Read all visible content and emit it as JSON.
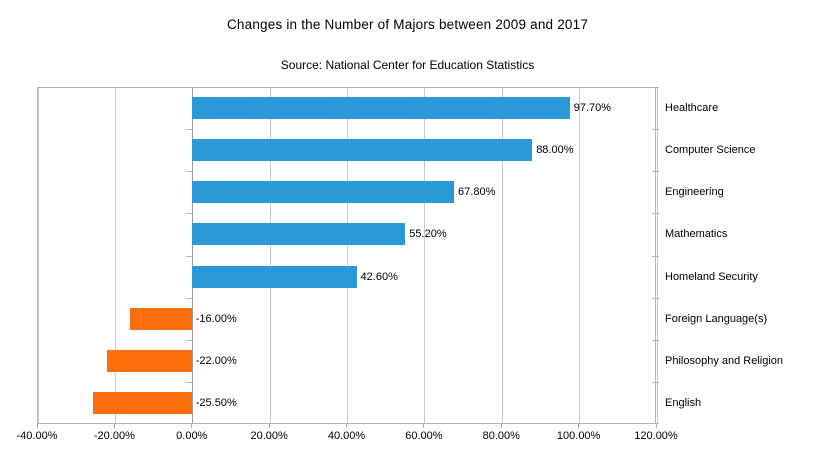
{
  "header": {
    "title": "Changes in the Number of Majors between 2009 and 2017",
    "subtitle": "Source: National Center for Education Statistics"
  },
  "chart_data": {
    "type": "bar",
    "orientation": "horizontal",
    "title": "Changes in the Number of Majors between 2009 and 2017",
    "subtitle": "Source: National Center for Education Statistics",
    "categories": [
      "Healthcare",
      "Computer Science",
      "Engineering",
      "Mathematics",
      "Homeland Security",
      "Foreign Language(s)",
      "Philosophy and Religion",
      "English"
    ],
    "values": [
      97.7,
      88.0,
      67.8,
      55.2,
      42.6,
      -16.0,
      -22.0,
      -25.5
    ],
    "value_labels": [
      "97.70%",
      "88.00%",
      "67.80%",
      "55.20%",
      "42.60%",
      "-16.00%",
      "-22.00%",
      "-25.50%"
    ],
    "x_ticks": [
      -40,
      -20,
      0,
      20,
      40,
      60,
      80,
      100,
      120
    ],
    "x_tick_labels": [
      "-40.00%",
      "-20.00%",
      "0.00%",
      "20.00%",
      "40.00%",
      "60.00%",
      "80.00%",
      "100.00%",
      "120.00%"
    ],
    "xlim": [
      -40,
      120
    ],
    "grid": true,
    "legend": "none",
    "positive_color": "#2b98d9",
    "negative_color": "#ff6e0c",
    "gridline_color": "#c9c9c9",
    "zero_line_color": "#9d9d9d",
    "axis_border_color": "#b3b3b3",
    "text_color": "#000000"
  }
}
